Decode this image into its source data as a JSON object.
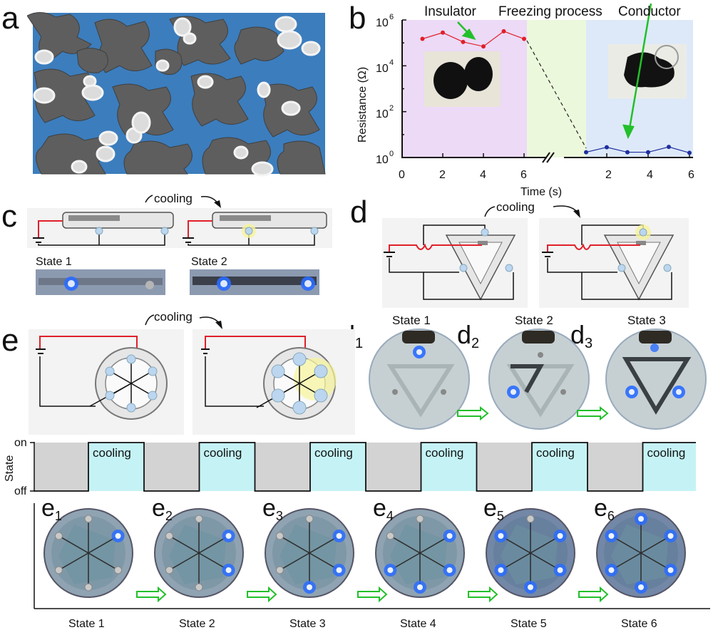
{
  "panels": {
    "a": "a",
    "b": "b",
    "c": "c",
    "d": "d",
    "e": "e",
    "d1": "d",
    "d1_sub": "1",
    "d2": "d",
    "d2_sub": "2",
    "d3": "d",
    "d3_sub": "3",
    "e1": "e",
    "e1_sub": "1",
    "e2": "e",
    "e2_sub": "2",
    "e3": "e",
    "e3_sub": "3",
    "e4": "e",
    "e4_sub": "4",
    "e5": "e",
    "e5_sub": "5",
    "e6": "e",
    "e6_sub": "6"
  },
  "colors": {
    "water": "#3c7dbd",
    "particle": "#5d5d5d",
    "insulator_bg": "#ecdaf7",
    "freeze_bg": "#ecf8dc",
    "conductor_bg": "#dde9f8",
    "red_series": "#e0202a",
    "blue_series": "#1f2f9e",
    "cooling_bg": "#c5f3f5",
    "off_bg": "#d3d3d3",
    "arrow_green": "#22c02a",
    "led_blue": "#2a6cff"
  },
  "panel_b": {
    "label_insulator": "Insulator",
    "label_freezing": "Freezing process",
    "label_conductor": "Conductor",
    "ylabel": "Resistance (Ω)",
    "xlabel": "Time (s)",
    "yticks": [
      "10",
      "10",
      "10",
      "10"
    ],
    "ytick_exp": [
      "0",
      "2",
      "4",
      "6"
    ],
    "xticks_left": [
      "0",
      "2",
      "4",
      "6"
    ],
    "xticks_right": [
      "2",
      "4",
      "6"
    ]
  },
  "chart_data": {
    "type": "line",
    "xlabel": "Time (s)",
    "ylabel": "Resistance (Ω)",
    "yscale": "log",
    "ylim": [
      1,
      1000000
    ],
    "broken_x_axis": true,
    "series": [
      {
        "x": [
          1,
          2,
          3,
          4,
          5,
          6
        ],
        "values": [
          150000,
          280000,
          110000,
          70000,
          320000,
          150000
        ]
      },
      {
        "x": [
          1,
          2,
          3,
          4,
          5,
          6
        ],
        "values": [
          1.7,
          2.8,
          1.7,
          1.7,
          2.9,
          1.6
        ]
      }
    ]
  },
  "panel_c": {
    "cooling": "cooling",
    "state1": "State 1",
    "state2": "State 2"
  },
  "panel_d": {
    "cooling": "cooling",
    "state1": "State 1",
    "state2": "State 2",
    "state3": "State 3"
  },
  "panel_e": {
    "cooling": "cooling"
  },
  "timeline": {
    "y_on": "on",
    "y_off": "off",
    "ylabel": "State",
    "cooling_labels": [
      "cooling",
      "cooling",
      "cooling",
      "cooling",
      "cooling",
      "cooling"
    ],
    "state_labels": [
      "State 1",
      "State 2",
      "State 3",
      "State 4",
      "State 5",
      "State 6"
    ]
  }
}
